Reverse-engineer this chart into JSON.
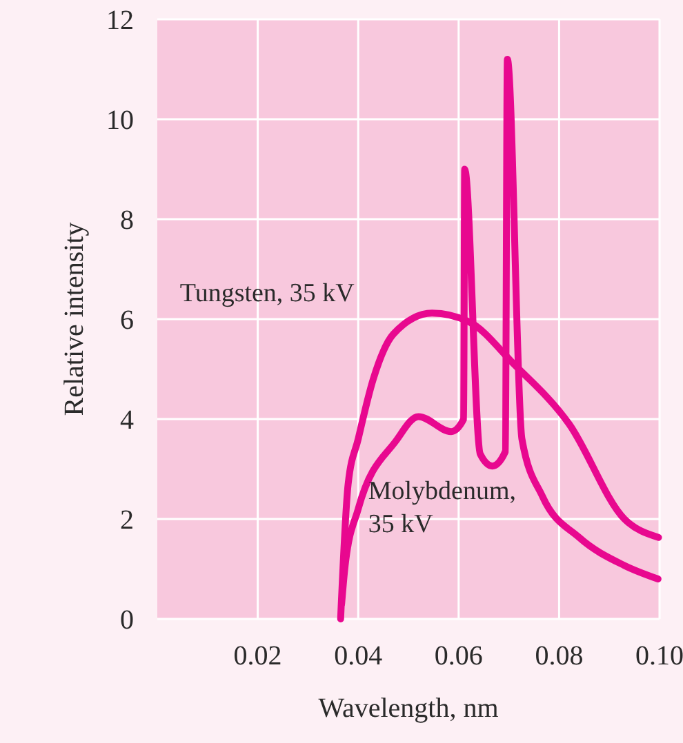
{
  "chart_data": {
    "type": "line",
    "xlabel": "Wavelength, nm",
    "ylabel": "Relative intensity",
    "xlim": [
      0,
      0.1
    ],
    "ylim": [
      0,
      12
    ],
    "xticks": [
      0.02,
      0.04,
      0.06,
      0.08,
      {
        "value": 0.1,
        "label": "0.10"
      }
    ],
    "yticks": [
      0,
      2,
      4,
      6,
      8,
      10,
      12
    ],
    "grid": true,
    "legend": false,
    "line_style": "solid",
    "marker": "none",
    "series": [
      {
        "name": "Tungsten, 35 kV",
        "color": "#e8088f",
        "x": [
          0.0365,
          0.038,
          0.04,
          0.043,
          0.047,
          0.0547,
          0.062,
          0.071,
          0.082,
          0.093,
          0.0998
        ],
        "values": [
          0,
          2.7,
          3.6,
          4.8,
          5.7,
          6.12,
          5.95,
          5.1,
          3.9,
          2.0,
          1.63
        ]
      },
      {
        "name": "Molybdenum, 35 kV",
        "color": "#e8088f",
        "x": [
          0.0367,
          0.0374,
          0.04,
          0.0475,
          0.052,
          0.0585,
          0.061,
          0.0612,
          0.0643,
          0.0667,
          0.0693,
          0.0697,
          0.0726,
          0.0767,
          0.084,
          0.093,
          0.0997
        ],
        "values": [
          0.3,
          1.07,
          2.2,
          3.56,
          4.05,
          3.75,
          4.0,
          9.0,
          3.3,
          3.06,
          3.35,
          11.2,
          3.6,
          2.45,
          1.63,
          1.07,
          0.8
        ]
      }
    ]
  }
}
